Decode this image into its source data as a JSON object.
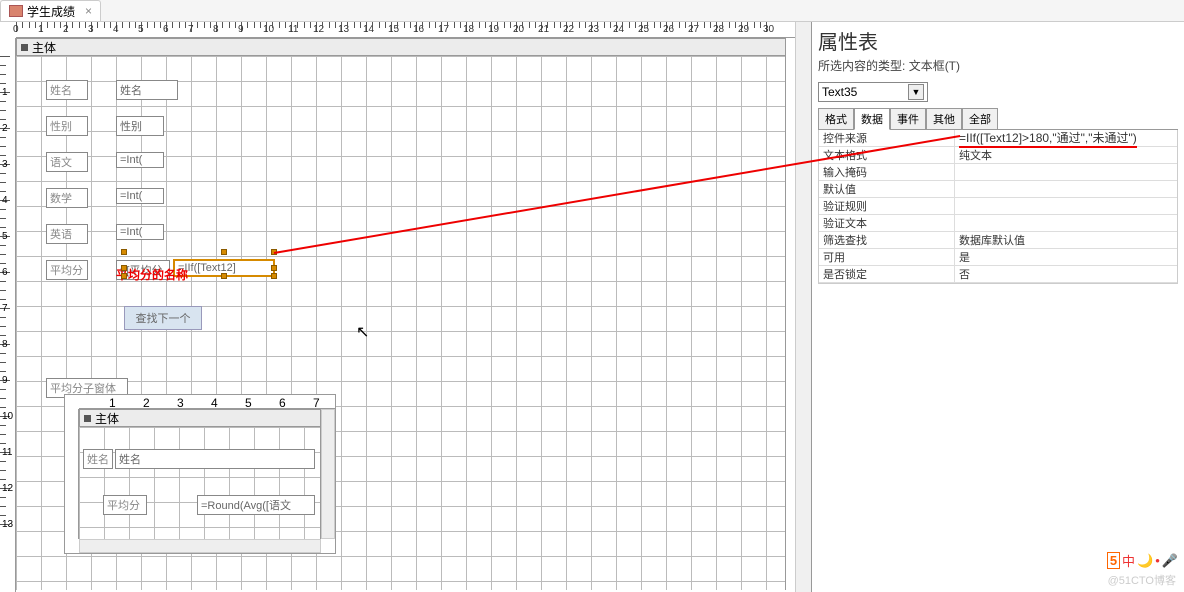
{
  "tab": {
    "title": "学生成绩"
  },
  "main_section": {
    "header": "主体"
  },
  "controls": {
    "r1_label": "姓名",
    "r1_field": "姓名",
    "r2_label": "性别",
    "r2_field": "性别",
    "r3_label": "语文",
    "r3_field": "=Int(",
    "r4_label": "数学",
    "r4_field": "=Int(",
    "r5_label": "英语",
    "r5_field": "=Int(",
    "r6_label": "平均分",
    "r6_field1": "=[平均分",
    "r6_field2": "=IIf([Text12]",
    "note": "平均分的名称",
    "btn": "查找下一个",
    "subform_label": "平均分子窗体"
  },
  "subform": {
    "section": "主体",
    "r1_label": "姓名",
    "r1_field": "姓名",
    "r2_label": "平均分",
    "r2_field": "=Round(Avg([语文"
  },
  "props": {
    "title": "属性表",
    "subtitle_prefix": "所选内容的类型:",
    "subtitle_type": "文本框(T)",
    "selected": "Text35",
    "tabs": [
      "格式",
      "数据",
      "事件",
      "其他",
      "全部"
    ],
    "active_tab": 1,
    "rows": [
      {
        "k": "控件来源",
        "v": "=IIf([Text12]>180,\"通过\",\"未通过\")",
        "hl": true
      },
      {
        "k": "文本格式",
        "v": "纯文本"
      },
      {
        "k": "输入掩码",
        "v": ""
      },
      {
        "k": "默认值",
        "v": ""
      },
      {
        "k": "验证规则",
        "v": ""
      },
      {
        "k": "验证文本",
        "v": ""
      },
      {
        "k": "筛选查找",
        "v": "数据库默认值"
      },
      {
        "k": "可用",
        "v": "是"
      },
      {
        "k": "是否锁定",
        "v": "否"
      }
    ]
  },
  "ruler": {
    "max_h": 30,
    "max_v": 13,
    "sub_max_h": 7
  },
  "watermark": "@51CTO博客",
  "colors": {
    "red": "#e00",
    "sel": "#d68a00"
  }
}
